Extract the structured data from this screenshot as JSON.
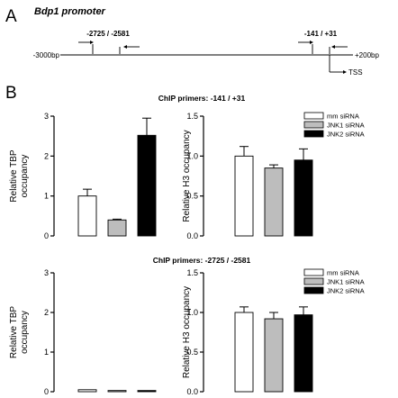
{
  "panel_a": {
    "letter": "A",
    "title": "Bdp1 promoter",
    "left_end": "-3000bp",
    "right_end": "+200bp",
    "primer_pair_1": "-2725 / -2581",
    "primer_pair_2": "-141 / +31",
    "tss": "TSS"
  },
  "panel_b": {
    "letter": "B",
    "section_titles": [
      "ChIP primers: -141 / +31",
      "ChIP primers: -2725 / -2581"
    ]
  },
  "colors": {
    "mm": "#ffffff",
    "jnk1": "#bdbdbd",
    "jnk2": "#000000",
    "axis": "#000000"
  },
  "chart_data": [
    {
      "type": "bar",
      "section": "ChIP primers: -141 / +31",
      "ylabel": [
        "Relative TBP",
        "occupancy"
      ],
      "ylim": [
        0,
        3
      ],
      "yticks": [
        "0",
        "1",
        "2",
        "3"
      ],
      "categories": [
        "mm siRNA",
        "JNK1 siRNA",
        "JNK2 siRNA"
      ],
      "values": [
        1.0,
        0.4,
        2.52
      ],
      "errors": [
        0.17,
        0.02,
        0.43
      ]
    },
    {
      "type": "bar",
      "section": "ChIP primers: -141 / +31",
      "ylabel": [
        "Relative H3 occupancy"
      ],
      "ylim": [
        0,
        1.5
      ],
      "yticks": [
        "0.0",
        "0.5",
        "1.0",
        "1.5"
      ],
      "categories": [
        "mm siRNA",
        "JNK1 siRNA",
        "JNK2 siRNA"
      ],
      "values": [
        1.0,
        0.85,
        0.95
      ],
      "errors": [
        0.12,
        0.04,
        0.14
      ],
      "legend": [
        "mm siRNA",
        "JNK1 siRNA",
        "JNK2 siRNA"
      ]
    },
    {
      "type": "bar",
      "section": "ChIP primers: -2725 / -2581",
      "ylabel": [
        "Relative TBP",
        "occupancy"
      ],
      "ylim": [
        0,
        3
      ],
      "yticks": [
        "0",
        "1",
        "2",
        "3"
      ],
      "categories": [
        "mm siRNA",
        "JNK1 siRNA",
        "JNK2 siRNA"
      ],
      "values": [
        0.05,
        0.03,
        0.03
      ],
      "errors": [
        0.0,
        0.0,
        0.0
      ]
    },
    {
      "type": "bar",
      "section": "ChIP primers: -2725 / -2581",
      "ylabel": [
        "Relative H3 occupancy"
      ],
      "ylim": [
        0,
        1.5
      ],
      "yticks": [
        "0.0",
        "0.5",
        "1.0",
        "1.5"
      ],
      "categories": [
        "mm siRNA",
        "JNK1 siRNA",
        "JNK2 siRNA"
      ],
      "values": [
        1.0,
        0.92,
        0.97
      ],
      "errors": [
        0.07,
        0.08,
        0.1
      ],
      "legend": [
        "mm siRNA",
        "JNK1 siRNA",
        "JNK2 siRNA"
      ]
    }
  ]
}
